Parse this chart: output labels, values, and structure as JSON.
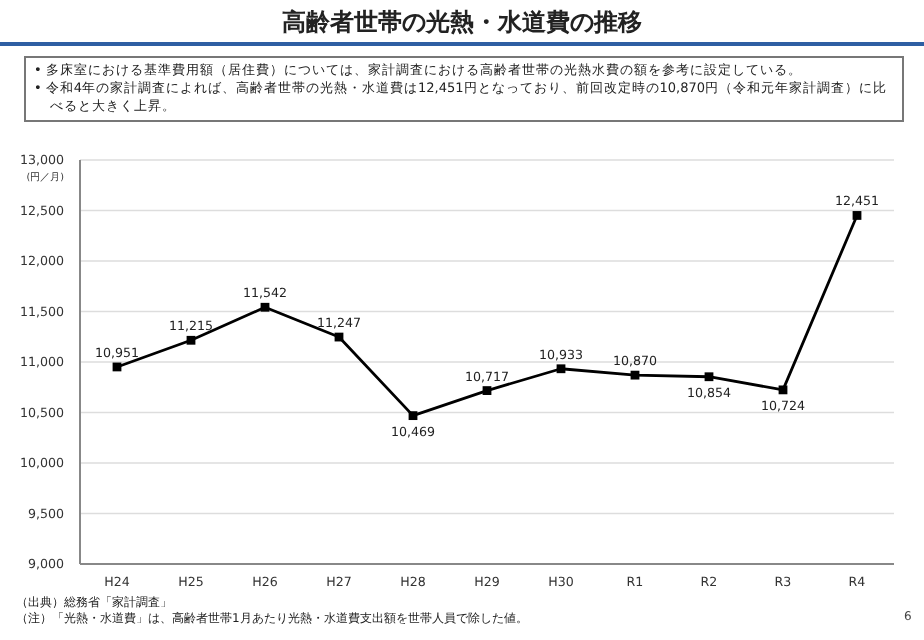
{
  "chart_data": {
    "type": "line",
    "title": "高齢者世帯の光熱・水道費の推移",
    "ylabel": "(円／月)",
    "categories": [
      "H24",
      "H25",
      "H26",
      "H27",
      "H28",
      "H29",
      "H30",
      "R1",
      "R2",
      "R3",
      "R4"
    ],
    "series": [
      {
        "color": "#000000",
        "values": [
          10951,
          11215,
          11542,
          11247,
          10469,
          10717,
          10933,
          10870,
          10854,
          10724,
          12451
        ]
      }
    ],
    "ylim": [
      9000,
      13000
    ],
    "yticks": [
      {
        "value": 9000,
        "label": "9,000"
      },
      {
        "value": 9500,
        "label": "9,500"
      },
      {
        "value": 10000,
        "label": "10,000"
      },
      {
        "value": 10500,
        "label": "10,500"
      },
      {
        "value": 11000,
        "label": "11,000"
      },
      {
        "value": 11500,
        "label": "11,500"
      },
      {
        "value": 12000,
        "label": "12,000"
      },
      {
        "value": 12500,
        "label": "12,500"
      },
      {
        "value": 13000,
        "label": "13,000"
      }
    ],
    "value_labels": [
      "10,951",
      "11,215",
      "11,542",
      "11,247",
      "10,469",
      "10,717",
      "10,933",
      "10,870",
      "10,854",
      "10,724",
      "12,451"
    ],
    "grid": "y",
    "marker": "square",
    "line_style": "solid",
    "annotations": [
      "• 多床室における基準費用額（居住費）については、家計調査における高齢者世帯の光熱水費の額を参考に設定している。",
      "• 令和4年の家計調査によれば、高齢者世帯の光熱・水道費は12,451円となっており、前回改定時の10,870円（令和元年家計調査）に比べると大きく上昇。",
      "（出典）総務省「家計調査」",
      "（注）「光熱・水道費」は、高齢者世帯1月あたり光熱・水道費支出額を世帯人員で除した値。",
      "6"
    ]
  }
}
